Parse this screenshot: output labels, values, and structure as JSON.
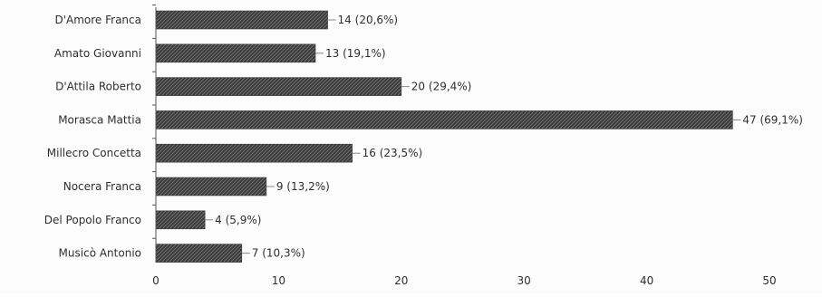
{
  "chart_data": {
    "type": "bar",
    "orientation": "horizontal",
    "title": "",
    "xlabel": "",
    "ylabel": "",
    "categories": [
      "D'Amore Franca",
      "Amato Giovanni",
      "D'Attila Roberto",
      "Morasca Mattia",
      "Millecro Concetta",
      "Nocera Franca",
      "Del Popolo Franco",
      "Musicò Antonio"
    ],
    "values": [
      14,
      13,
      20,
      47,
      16,
      9,
      4,
      7
    ],
    "data_labels": [
      "14 (20,6%)",
      "13 (19,1%)",
      "20 (29,4%)",
      "47 (69,1%)",
      "16 (23,5%)",
      "9 (13,2%)",
      "4 (5,9%)",
      "7 (10,3%)"
    ],
    "xlim": [
      0,
      50
    ],
    "xticks": [
      0,
      10,
      20,
      30,
      40,
      50
    ],
    "xtick_labels": [
      "0",
      "10",
      "20",
      "30",
      "40",
      "50"
    ],
    "grid": false,
    "legend": "none",
    "bar_color": "#3c3c3c",
    "axis_color": "#555555"
  }
}
